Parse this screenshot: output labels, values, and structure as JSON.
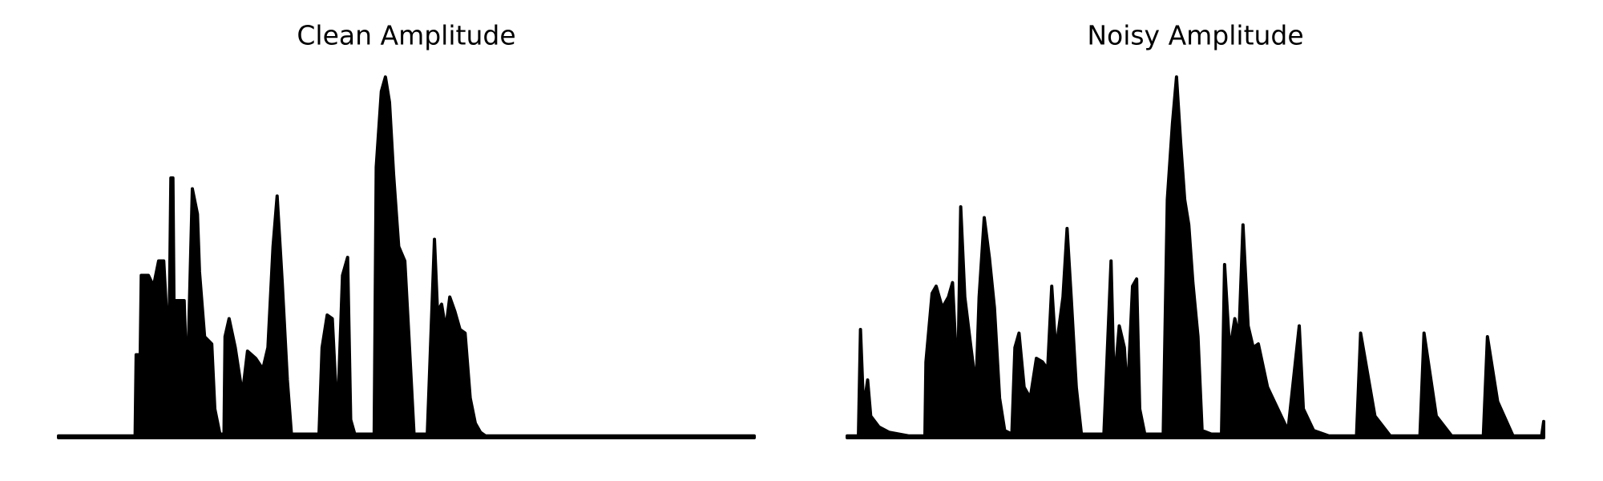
{
  "chart_data": [
    {
      "type": "area",
      "title": "Clean Amplitude",
      "color": "#000000",
      "xlim": [
        0,
        681
      ],
      "ylim": [
        0,
        1
      ],
      "x": [
        0,
        75,
        76,
        80,
        81,
        88,
        93,
        98,
        103,
        108,
        110,
        112,
        113,
        123,
        126,
        131,
        136,
        138,
        143,
        150,
        153,
        158,
        162,
        163,
        167,
        173,
        180,
        185,
        193,
        200,
        205,
        210,
        214,
        219,
        224,
        228,
        255,
        258,
        263,
        268,
        273,
        278,
        283,
        286,
        290,
        309,
        311,
        316,
        320,
        324,
        328,
        333,
        339,
        343,
        348,
        361,
        364,
        368,
        371,
        375,
        379,
        383,
        388,
        393,
        398,
        403,
        408,
        413,
        418,
        681
      ],
      "values": [
        0.005,
        0.005,
        0.23,
        0.23,
        0.45,
        0.45,
        0.42,
        0.49,
        0.49,
        0.23,
        0.72,
        0.72,
        0.38,
        0.38,
        0.13,
        0.69,
        0.62,
        0.46,
        0.28,
        0.26,
        0.08,
        0.01,
        0.01,
        0.28,
        0.33,
        0.25,
        0.12,
        0.24,
        0.22,
        0.19,
        0.25,
        0.53,
        0.67,
        0.43,
        0.16,
        0.01,
        0.01,
        0.25,
        0.34,
        0.33,
        0.05,
        0.45,
        0.5,
        0.05,
        0.01,
        0.01,
        0.75,
        0.96,
        1.0,
        0.93,
        0.73,
        0.53,
        0.49,
        0.28,
        0.01,
        0.01,
        0.24,
        0.55,
        0.35,
        0.37,
        0.3,
        0.39,
        0.35,
        0.3,
        0.29,
        0.11,
        0.04,
        0.015,
        0.005,
        0.005
      ]
    },
    {
      "type": "area",
      "title": "Noisy Amplitude",
      "color": "#000000",
      "xlim": [
        0,
        681
      ],
      "ylim": [
        0,
        1
      ],
      "x": [
        0,
        11,
        13,
        16,
        20,
        23,
        31,
        41,
        60,
        76,
        77,
        83,
        87,
        93,
        99,
        103,
        108,
        111,
        115,
        121,
        126,
        129,
        134,
        139,
        144,
        149,
        154,
        161,
        164,
        168,
        173,
        179,
        185,
        191,
        196,
        200,
        204,
        211,
        215,
        219,
        224,
        229,
        241,
        251,
        258,
        261,
        266,
        271,
        274,
        279,
        283,
        286,
        291,
        309,
        313,
        318,
        322,
        326,
        330,
        334,
        338,
        343,
        347,
        356,
        366,
        369,
        374,
        379,
        383,
        387,
        392,
        397,
        402,
        411,
        431,
        442,
        446,
        456,
        471,
        498,
        502,
        516,
        531,
        560,
        564,
        576,
        591,
        622,
        626,
        636,
        651,
        679,
        681
      ],
      "values": [
        0.005,
        0.005,
        0.3,
        0.08,
        0.16,
        0.06,
        0.03,
        0.015,
        0.005,
        0.005,
        0.21,
        0.4,
        0.42,
        0.36,
        0.39,
        0.43,
        0.14,
        0.64,
        0.39,
        0.25,
        0.14,
        0.39,
        0.61,
        0.5,
        0.36,
        0.11,
        0.02,
        0.01,
        0.25,
        0.29,
        0.14,
        0.11,
        0.22,
        0.21,
        0.19,
        0.42,
        0.24,
        0.39,
        0.58,
        0.39,
        0.14,
        0.01,
        0.01,
        0.01,
        0.49,
        0.14,
        0.31,
        0.25,
        0.11,
        0.42,
        0.44,
        0.08,
        0.01,
        0.01,
        0.66,
        0.87,
        1.0,
        0.82,
        0.66,
        0.59,
        0.43,
        0.28,
        0.02,
        0.01,
        0.01,
        0.48,
        0.24,
        0.33,
        0.28,
        0.59,
        0.31,
        0.25,
        0.26,
        0.14,
        0.02,
        0.31,
        0.08,
        0.02,
        0.005,
        0.005,
        0.29,
        0.06,
        0.005,
        0.005,
        0.29,
        0.06,
        0.005,
        0.005,
        0.28,
        0.1,
        0.005,
        0.005,
        0.045
      ]
    }
  ]
}
